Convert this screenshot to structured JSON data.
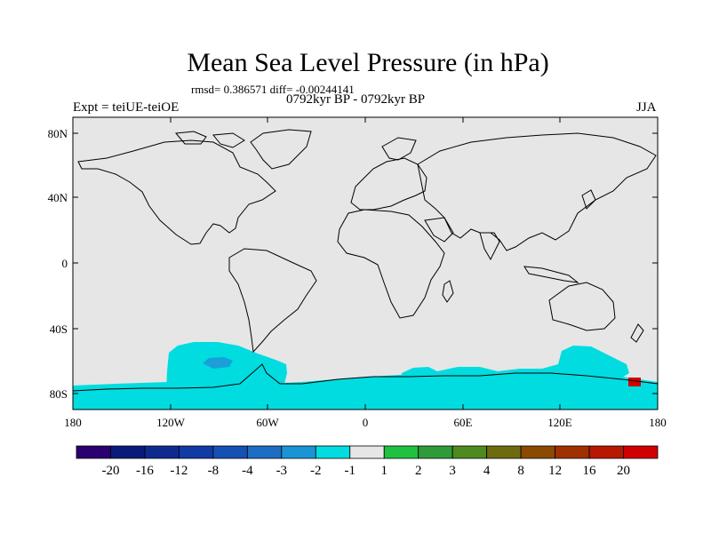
{
  "title": "Mean Sea Level Pressure (in hPa)",
  "stats": "rmsd= 0.386571 diff= -0.00244141",
  "period": "0792kyr BP - 0792kyr BP",
  "experiment": "Expt = teiUE-teiOE",
  "season": "JJA",
  "axes": {
    "lat_ticks": [
      "80N",
      "40N",
      "0",
      "40S",
      "80S"
    ],
    "lon_ticks": [
      "180",
      "120W",
      "60W",
      "0",
      "60E",
      "120E",
      "180"
    ]
  },
  "colors": {
    "land_ocean": "#e6e6e6",
    "anomaly_fill": "#00dce0",
    "anomaly_strong": "#1aa0d8",
    "coast": "#000000"
  },
  "colorbar": {
    "labels": [
      "-20",
      "-16",
      "-12",
      "-8",
      "-4",
      "-3",
      "-2",
      "-1",
      "1",
      "2",
      "3",
      "4",
      "8",
      "12",
      "16",
      "20"
    ],
    "colors": [
      "#2b0070",
      "#0a1a7a",
      "#0f2a8f",
      "#123aa5",
      "#1550b5",
      "#1b6ec4",
      "#1a94d5",
      "#00dce0",
      "#e6e6e6",
      "#20c040",
      "#2f9a3a",
      "#4f8a20",
      "#6e6a10",
      "#8a4a00",
      "#a03000",
      "#b81800",
      "#d00000"
    ]
  }
}
